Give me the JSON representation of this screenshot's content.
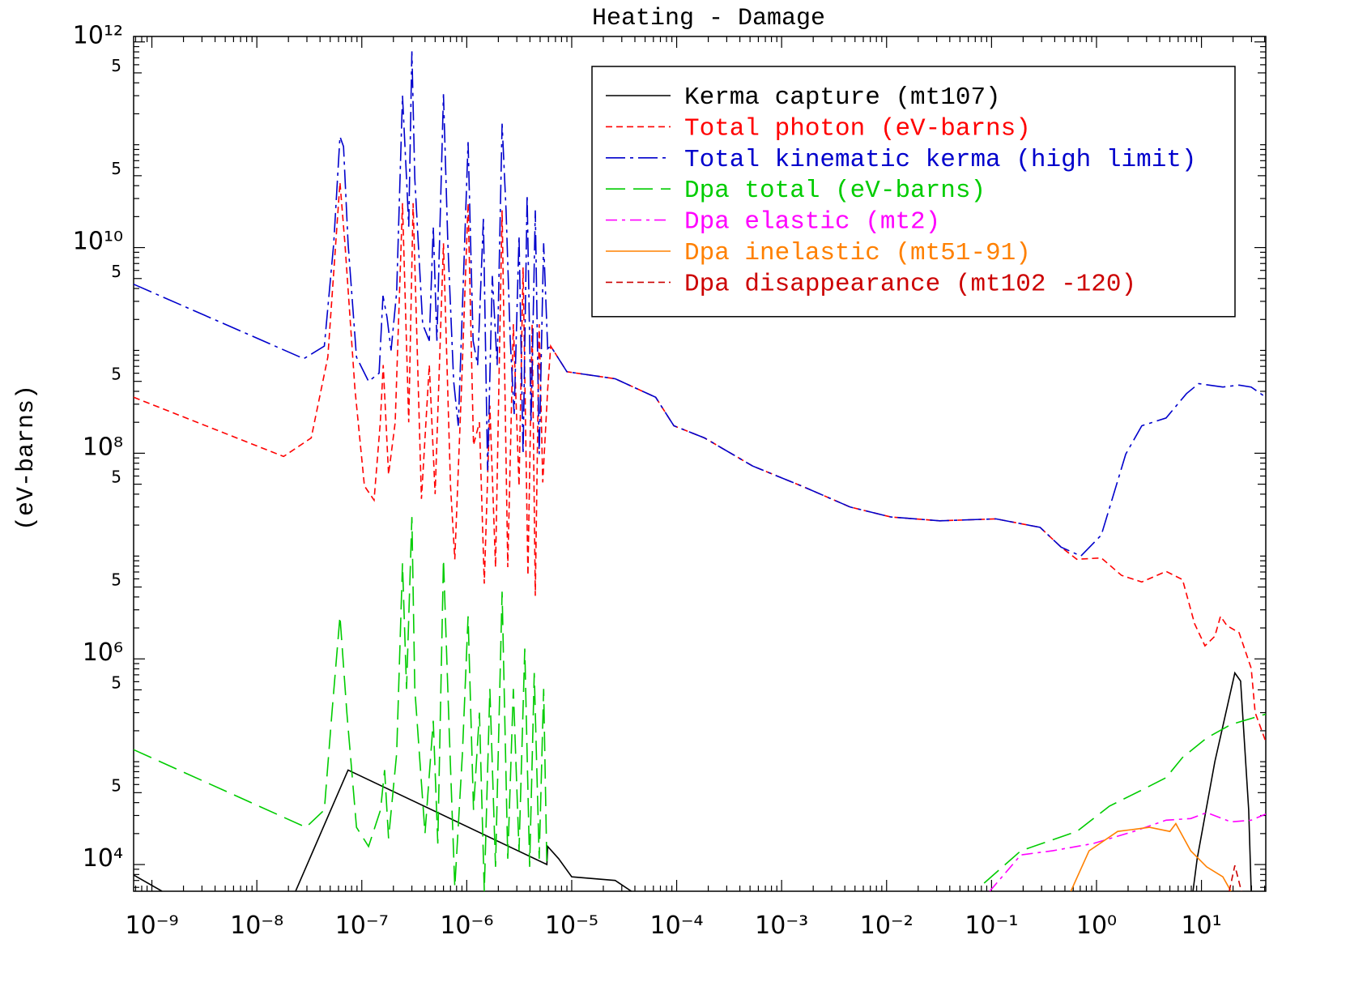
{
  "chart_data": {
    "type": "line",
    "title": "Heating - Damage",
    "y_label": "(eV-barns)",
    "log_x": true,
    "log_y": true,
    "grid": false,
    "legend": "upper right",
    "xlim": [
      6.7e-10,
      41
    ],
    "ylim": [
      5500,
      1130000000000.0
    ],
    "xticks": [
      {
        "value": 1e-09,
        "label": "10⁻⁹"
      },
      {
        "value": 1e-08,
        "label": "10⁻⁸"
      },
      {
        "value": 1e-07,
        "label": "10⁻⁷"
      },
      {
        "value": 1e-06,
        "label": "10⁻⁶"
      },
      {
        "value": 1e-05,
        "label": "10⁻⁵"
      },
      {
        "value": 0.0001,
        "label": "10⁻⁴"
      },
      {
        "value": 0.001,
        "label": "10⁻³"
      },
      {
        "value": 0.01,
        "label": "10⁻²"
      },
      {
        "value": 0.1,
        "label": "10⁻¹"
      },
      {
        "value": 1,
        "label": "10⁰"
      },
      {
        "value": 10,
        "label": "10¹"
      }
    ],
    "yticks": [
      {
        "value": 10000.0,
        "label": "10⁴"
      },
      {
        "value": 50000.0,
        "label": "5"
      },
      {
        "value": 500000.0,
        "label": "5"
      },
      {
        "value": 1000000.0,
        "label": "10⁶"
      },
      {
        "value": 5000000.0,
        "label": "5"
      },
      {
        "value": 50000000.0,
        "label": "5"
      },
      {
        "value": 100000000.0,
        "label": "10⁸"
      },
      {
        "value": 500000000.0,
        "label": "5"
      },
      {
        "value": 5000000000.0,
        "label": "5"
      },
      {
        "value": 10000000000.0,
        "label": "10¹⁰"
      },
      {
        "value": 50000000000.0,
        "label": "5"
      },
      {
        "value": 500000000000.0,
        "label": "5"
      },
      {
        "value": 1000000000000.0,
        "label": "10¹²"
      }
    ],
    "series": [
      {
        "name": "Kerma capture (mt107)",
        "color": "#000000",
        "dash": "none",
        "x": [
          6.7e-10,
          1.25e-09,
          null,
          2.34e-08,
          7.4e-08,
          5.8e-06,
          5.9e-06,
          7.5e-06,
          1e-05,
          2.6e-05,
          3.7e-05,
          null,
          8.3,
          9.1,
          13.4,
          20.8,
          23.6,
          28.2,
          29.8
        ],
        "values": [
          7900.0,
          5500.0,
          null,
          5500.0,
          83000.0,
          10000.0,
          15000.0,
          11400.0,
          7600.0,
          7000.0,
          5500.0,
          null,
          5500.0,
          11400.0,
          100000.0,
          730000.0,
          610000.0,
          34000.0,
          5500.0
        ]
      },
      {
        "name": "Total photon (eV-barns)",
        "color": "#ff0000",
        "dash": "8,5",
        "x": [
          6.7e-10,
          1.8e-08,
          3.3e-08,
          4.75e-08,
          6.2e-08,
          6.9e-08,
          8.6e-08,
          1.06e-07,
          1.31e-07,
          1.5e-07,
          1.6e-07,
          1.8e-07,
          2.08e-07,
          2.44e-07,
          2.8e-07,
          3.08e-07,
          3.7e-07,
          4.4e-07,
          5e-07,
          6e-07,
          7e-07,
          7.7e-07,
          8.9e-07,
          1.03e-06,
          1.16e-06,
          1.32e-06,
          1.47e-06,
          1.66e-06,
          1.88e-06,
          2.17e-06,
          2.46e-06,
          2.78e-06,
          3.15e-06,
          3.44e-06,
          3.83e-06,
          4.2e-06,
          4.5e-06,
          4.9e-06,
          5.3e-06,
          5.9e-06,
          6.3e-06,
          9e-06,
          2.6e-05,
          6.3e-05,
          9.4e-05,
          0.000184,
          0.00053,
          0.00155,
          0.0045,
          0.011,
          0.032,
          0.11,
          0.29,
          0.46,
          0.65,
          1.11,
          1.73,
          2.7,
          4.6,
          6.6,
          8.6,
          10.8,
          13.4,
          15.2,
          17.5,
          22.8,
          29.8,
          32.5,
          41
        ],
        "values": [
          350000000.0,
          93000000.0,
          141000000.0,
          860000000.0,
          43000000000.0,
          11000000000.0,
          420000000.0,
          48000000.0,
          35000000.0,
          200000000.0,
          720000000.0,
          62000000.0,
          200000000.0,
          27000000000.0,
          200000000.0,
          27000000000.0,
          36000000.0,
          720000000.0,
          40000000.0,
          11000000000.0,
          48000000.0,
          9300000.0,
          420000000.0,
          27000000000.0,
          120000000.0,
          200000000.0,
          5400000.0,
          290000000.0,
          7800000.0,
          23000000000.0,
          7800000.0,
          1800000000.0,
          48000000.0,
          6400000000.0,
          6500000.0,
          1800000000.0,
          4100000.0,
          1800000000.0,
          52000000.0,
          420000000.0,
          1100000000.0,
          620000000.0,
          530000000.0,
          350000000.0,
          185000000.0,
          141000000.0,
          75000000.0,
          48000000.0,
          30000000.0,
          24000000.0,
          22000000.0,
          23000000.0,
          19000000.0,
          12200000.0,
          9300000.0,
          9600000.0,
          6500000.0,
          5600000.0,
          7100000.0,
          5900000.0,
          2200000.0,
          1340000.0,
          1660000.0,
          2600000.0,
          2100000.0,
          1800000.0,
          810000.0,
          300000.0,
          157000.0
        ]
      },
      {
        "name": "Total kinematic kerma (high limit)",
        "color": "#0000cc",
        "dash": "24,6,4,6",
        "x": [
          6.7e-10,
          2.8e-08,
          4.4e-08,
          5.4e-08,
          6.2e-08,
          6.7e-08,
          7.4e-08,
          8.9e-08,
          1.16e-07,
          1.46e-07,
          1.59e-07,
          1.74e-07,
          1.9e-07,
          2.15e-07,
          2.44e-07,
          2.67e-07,
          2.8e-07,
          3e-07,
          3.2e-07,
          3.8e-07,
          4.4e-07,
          4.8e-07,
          5.2e-07,
          6e-07,
          6.6e-07,
          7.5e-07,
          8.3e-07,
          9.1e-07,
          1.03e-06,
          1.15e-06,
          1.27e-06,
          1.44e-06,
          1.58e-06,
          1.75e-06,
          1.95e-06,
          2.17e-06,
          2.37e-06,
          2.6e-06,
          2.83e-06,
          3.15e-06,
          3.44e-06,
          3.76e-06,
          4.1e-06,
          4.5e-06,
          4.9e-06,
          5.4e-06,
          5.9e-06,
          6.3e-06,
          9e-06,
          2.6e-05,
          6.3e-05,
          9.4e-05,
          0.000184,
          0.00053,
          0.00155,
          0.0045,
          0.011,
          0.032,
          0.11,
          0.29,
          0.46,
          0.71,
          1.11,
          1.9,
          2.7,
          4.6,
          7.2,
          9.4,
          16,
          22.8,
          29.8,
          41
        ],
        "values": [
          4400000000.0,
          830000000.0,
          1100000000.0,
          11000000000.0,
          120000000000.0,
          96000000000.0,
          11000000000.0,
          860000000.0,
          500000000.0,
          600000000.0,
          3400000000.0,
          2100000000.0,
          1000000000.0,
          3700000000.0,
          300000000000.0,
          47000000000.0,
          16000000000.0,
          810000000000.0,
          47000000000.0,
          1800000000.0,
          1240000000.0,
          16000000000.0,
          1240000000.0,
          310000000000.0,
          11000000000.0,
          500000000.0,
          185000000.0,
          2600000000.0,
          106000000000.0,
          1240000000.0,
          720000000.0,
          19000000000.0,
          68000000.0,
          5300000000.0,
          720000000.0,
          160000000000.0,
          23000000000.0,
          1240000000.0,
          240000000.0,
          13000000000.0,
          98000000.0,
          32500000000.0,
          200000000.0,
          23000000000.0,
          98000000.0,
          11000000000.0,
          1040000000.0,
          1100000000.0,
          620000000.0,
          530000000.0,
          350000000.0,
          185000000.0,
          141000000.0,
          75000000.0,
          48000000.0,
          30000000.0,
          24000000.0,
          22000000.0,
          23000000.0,
          19000000.0,
          12200000.0,
          10000000.0,
          16000000.0,
          98000000.0,
          185000000.0,
          220000000.0,
          380000000.0,
          475000000.0,
          440000000.0,
          460000000.0,
          440000000.0,
          350000000.0
        ]
      },
      {
        "name": "Dpa total (eV-barns)",
        "color": "#00cc00",
        "dash": "24,10",
        "x": [
          6.7e-10,
          2.94e-08,
          4.4e-08,
          5.2e-08,
          6.2e-08,
          7.2e-08,
          8.9e-08,
          1.16e-07,
          1.51e-07,
          1.65e-07,
          1.8e-07,
          2.15e-07,
          2.44e-07,
          2.67e-07,
          3e-07,
          3.2e-07,
          4e-07,
          4.8e-07,
          5.3e-07,
          6e-07,
          6.8e-07,
          7.7e-07,
          9.1e-07,
          1.03e-06,
          1.16e-06,
          1.32e-06,
          1.47e-06,
          1.66e-06,
          1.88e-06,
          2.17e-06,
          2.46e-06,
          2.78e-06,
          3.15e-06,
          3.57e-06,
          3.97e-06,
          4.4e-06,
          4.9e-06,
          5.4e-06,
          5.8e-06,
          null,
          0.085,
          0.19,
          0.65,
          1.33,
          2.7,
          4.6,
          6.6,
          11.2,
          19.1,
          41
        ],
        "values": [
          131000.0,
          23000.0,
          34000.0,
          300000.0,
          2600000.0,
          300000.0,
          23000.0,
          15000.0,
          34000.0,
          83000.0,
          18000.0,
          120000.0,
          8500000.0,
          510000.0,
          24000000.0,
          510000.0,
          20000.0,
          250000.0,
          16000.0,
          9300000.0,
          210000.0,
          6000.0,
          120000.0,
          2600000.0,
          34000.0,
          300000.0,
          5500.0,
          510000.0,
          9500.0,
          4500000.0,
          11400.0,
          510000.0,
          13600.0,
          1260000.0,
          9500.0,
          730000.0,
          11400.0,
          510000.0,
          9500.0,
          null,
          6600.0,
          13600.0,
          21000.0,
          37000.0,
          53000.0,
          70000.0,
          110000.0,
          170000.0,
          230000.0,
          290000.0
        ]
      },
      {
        "name": "Dpa elastic (mt2)",
        "color": "#ff00ff",
        "dash": "14,6,4,6",
        "x": [
          0.096,
          0.19,
          0.38,
          0.93,
          2.26,
          4.6,
          7.9,
          11.2,
          19.1,
          29.8,
          41
        ],
        "values": [
          5500.0,
          12400.0,
          13600.0,
          16000.0,
          21000.0,
          27000.0,
          28000.0,
          32000.0,
          26000.0,
          27000.0,
          31000.0
        ]
      },
      {
        "name": "Dpa inelastic (mt51-91)",
        "color": "#ff8000",
        "dash": "none",
        "x": [
          0.57,
          0.85,
          1.59,
          3.2,
          5.0,
          5.7,
          7.9,
          11.2,
          16,
          19.1
        ],
        "values": [
          5500.0,
          13600.0,
          21000.0,
          23000.0,
          21000.0,
          25000.0,
          13600.0,
          9500.0,
          7600.0,
          5500.0
        ]
      },
      {
        "name": "Dpa disappearance (mt102 -120)",
        "color": "#cc0000",
        "dash": "8,5",
        "x": [
          18.4,
          20.8,
          24
        ],
        "values": [
          5500.0,
          9800.0,
          5500.0
        ]
      }
    ]
  }
}
